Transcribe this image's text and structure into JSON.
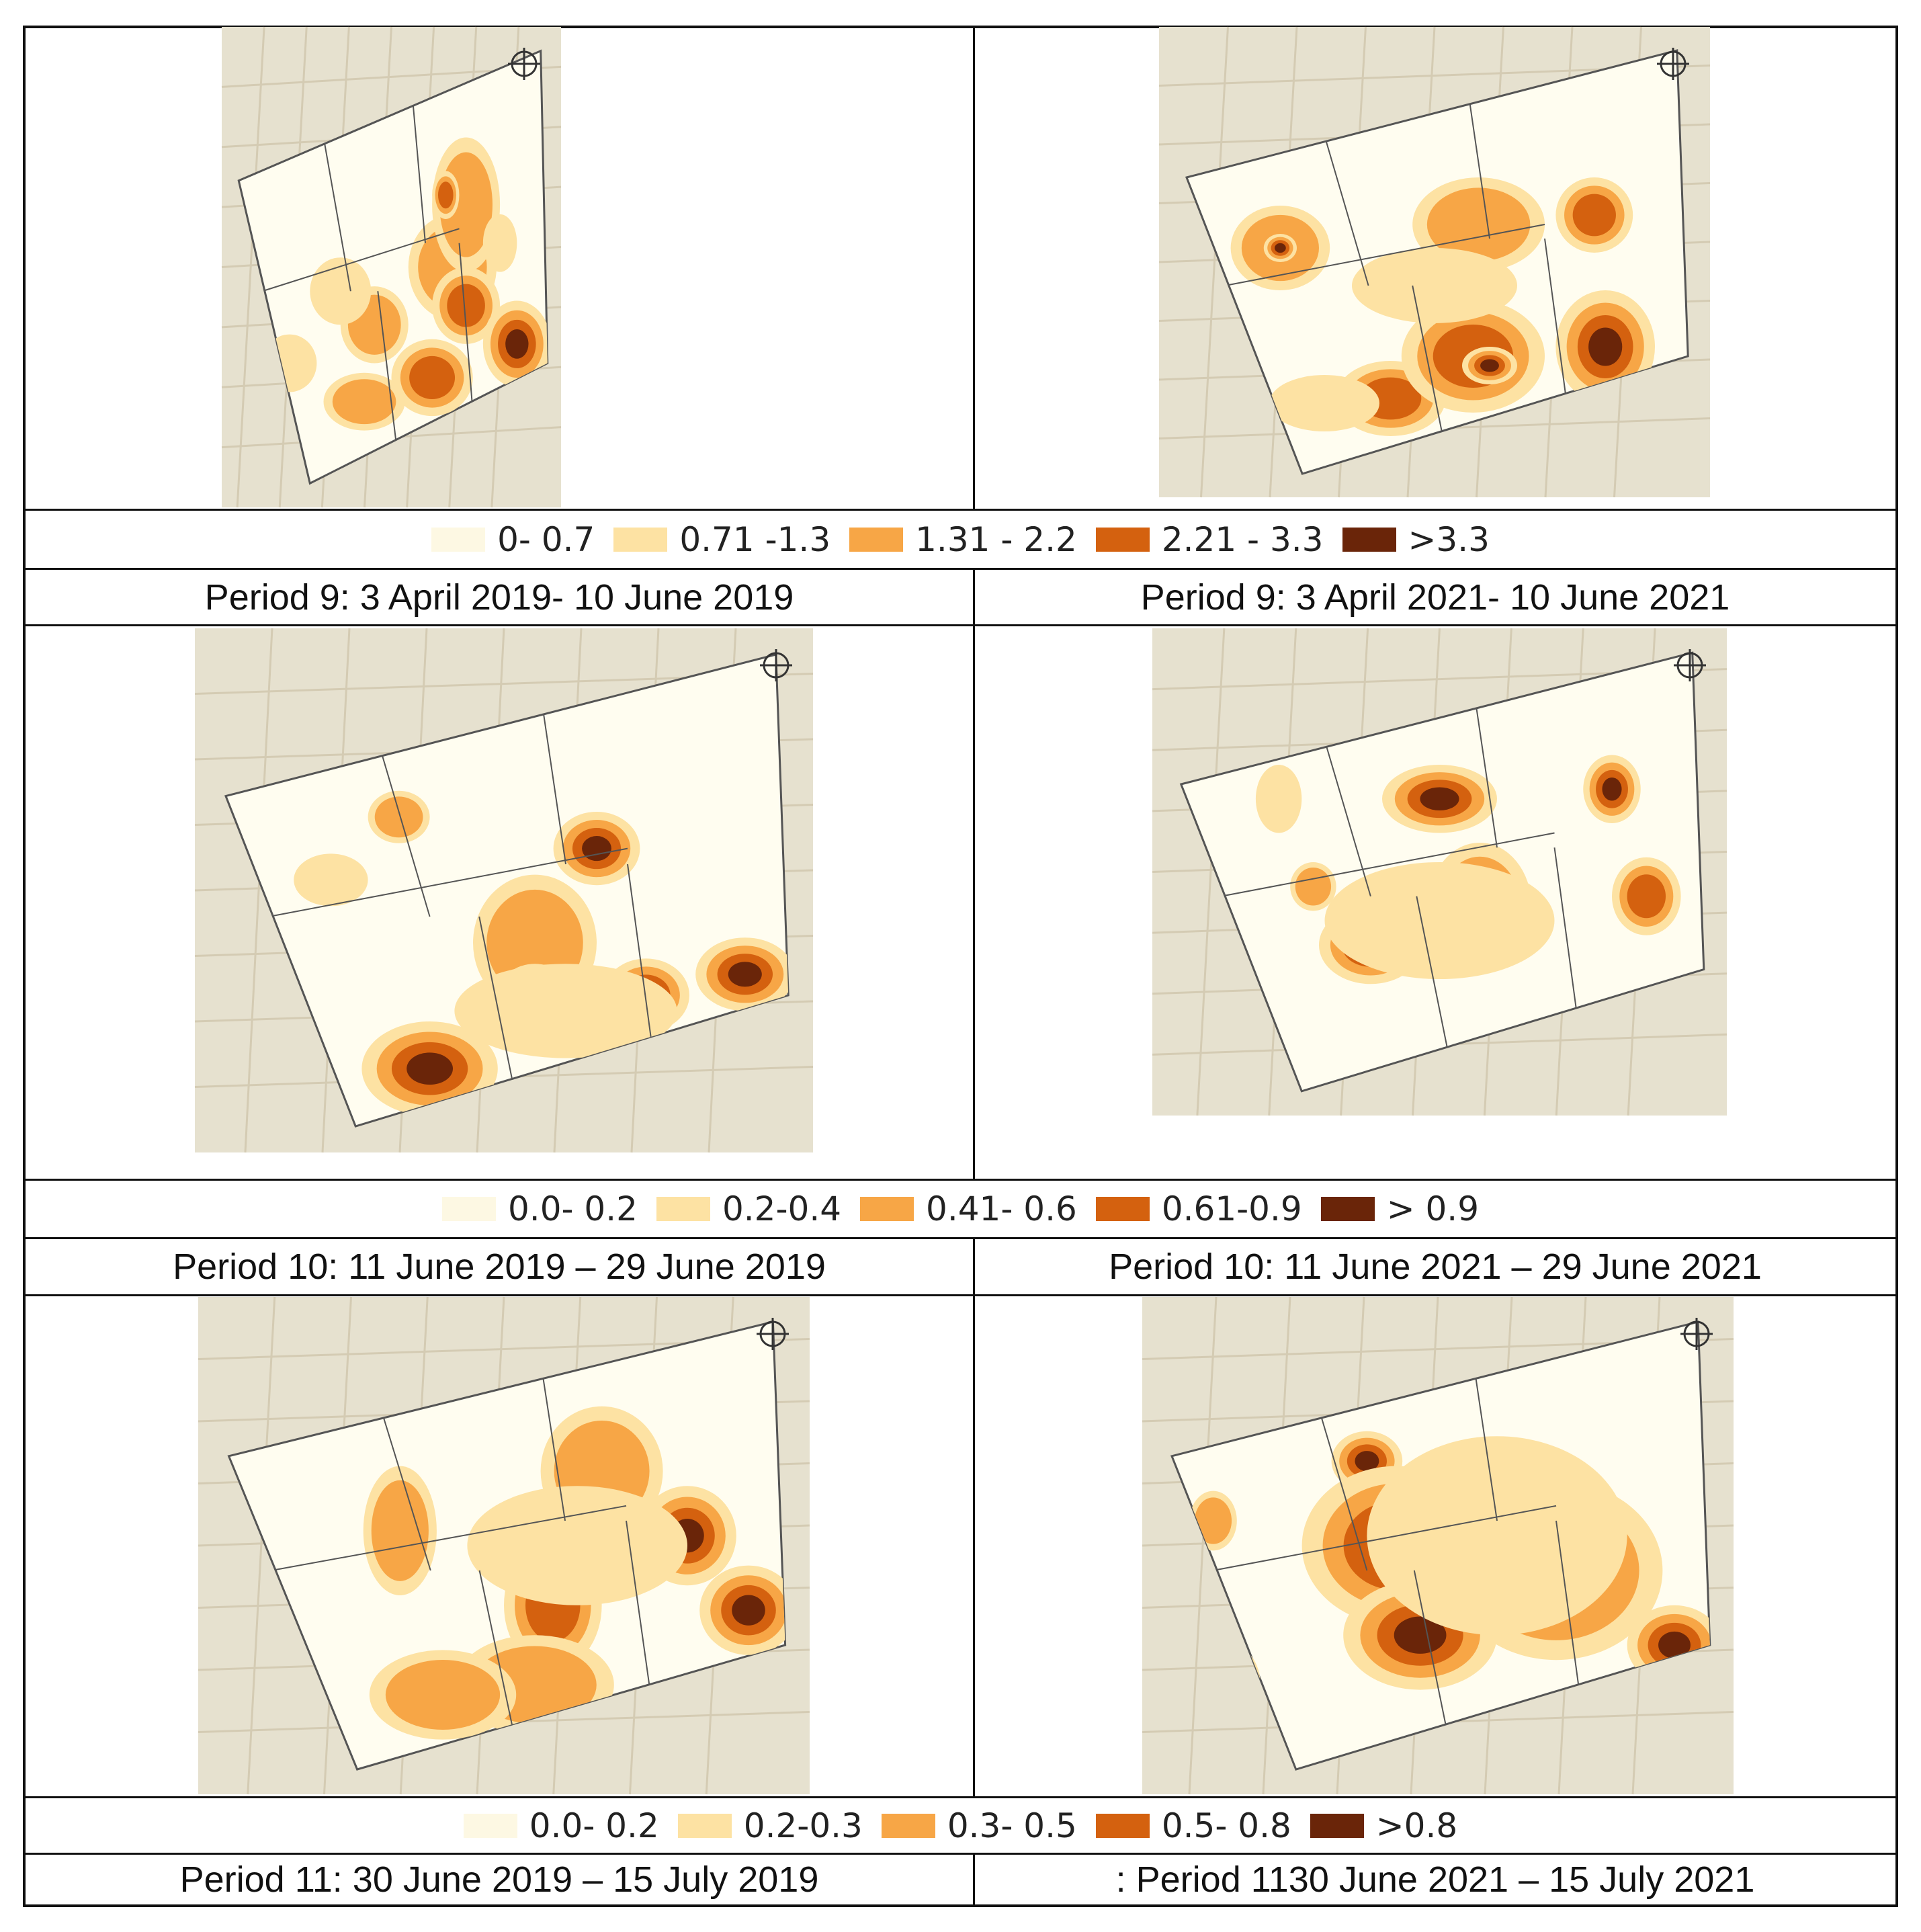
{
  "colors": {
    "class1": "#fdf8e3",
    "class2": "#fde2a3",
    "class3": "#f7a646",
    "class4": "#d4610f",
    "class5": "#6a2509",
    "basemap": "#e6e1cf",
    "study_area": "#fffdf0"
  },
  "rows": [
    {
      "legend": [
        "0- 0.7",
        "0.71 -1.3",
        "1.31 - 2.2",
        "2.21 - 3.3",
        ">3.3"
      ],
      "captions": [
        "Period 9: 3 April 2019- 10 June 2019",
        "Period 9: 3 April 2021- 10 June 2021"
      ]
    },
    {
      "legend": [
        "0.0- 0.2",
        "0.2-0.4",
        "0.41- 0.6",
        "0.61-0.9",
        "> 0.9"
      ],
      "captions": [
        "Period 10: 11 June 2019 – 29 June 2019",
        "Period 10: 11 June 2021 – 29 June 2021"
      ]
    },
    {
      "legend": [
        "0.0- 0.2",
        "0.2-0.3",
        "0.3- 0.5",
        "0.5- 0.8",
        ">0.8"
      ],
      "captions": [
        "Period 11: 30 June 2019 – 15 July 2019",
        ": Period 1130 June 2021 – 15 July 2021"
      ]
    }
  ],
  "maps": [
    {
      "icon": "north-arrow-icon"
    }
  ]
}
